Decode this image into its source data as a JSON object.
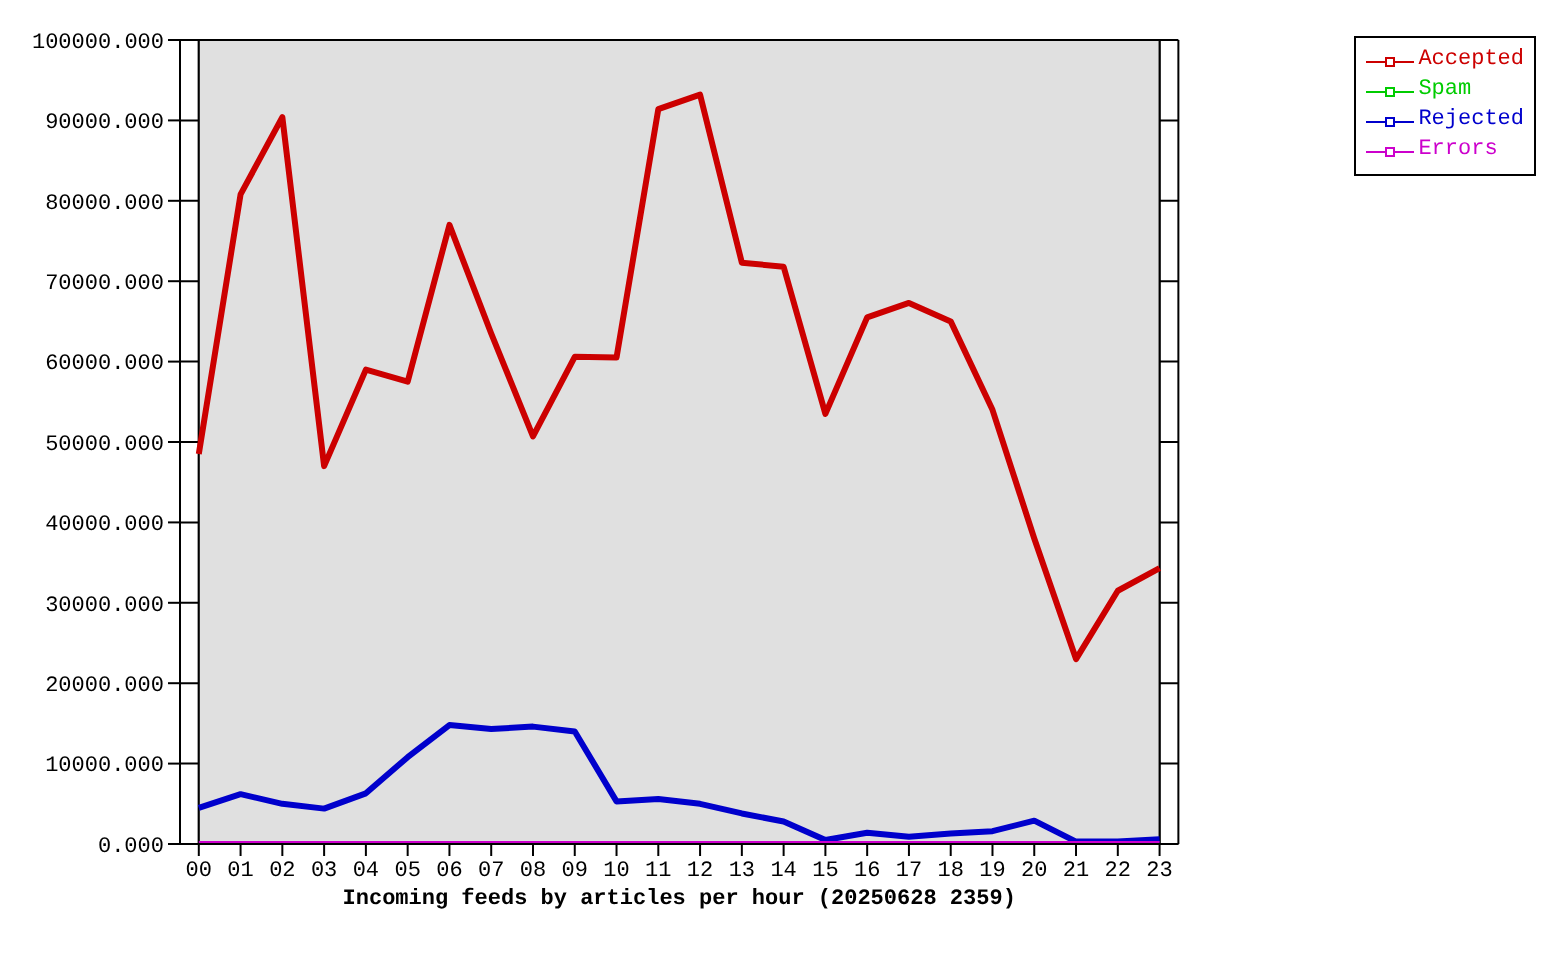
{
  "chart_data": {
    "type": "line",
    "xlabel": "Incoming feeds by articles per hour (20250628 2359)",
    "categories": [
      "00",
      "01",
      "02",
      "03",
      "04",
      "05",
      "06",
      "07",
      "08",
      "09",
      "10",
      "11",
      "12",
      "13",
      "14",
      "15",
      "16",
      "17",
      "18",
      "19",
      "20",
      "21",
      "22",
      "23"
    ],
    "series": [
      {
        "name": "Accepted",
        "color": "#cc0000",
        "values": [
          48500,
          80800,
          90400,
          47000,
          59000,
          57500,
          77000,
          63500,
          50700,
          60600,
          60500,
          91400,
          93200,
          72300,
          71800,
          53500,
          65500,
          67300,
          65000,
          54000,
          38000,
          23000,
          31500,
          34300
        ]
      },
      {
        "name": "Spam",
        "color": "#00cc00",
        "values": [
          null,
          null,
          null,
          null,
          null,
          null,
          null,
          null,
          null,
          null,
          null,
          null,
          null,
          null,
          null,
          null,
          null,
          null,
          null,
          null,
          null,
          null,
          null,
          null
        ]
      },
      {
        "name": "Rejected",
        "color": "#0000cc",
        "values": [
          4500,
          6200,
          5000,
          4400,
          6300,
          10800,
          14800,
          14300,
          14600,
          14000,
          5300,
          5600,
          5000,
          3800,
          2800,
          500,
          1400,
          900,
          1300,
          1600,
          2900,
          300,
          300,
          600
        ]
      },
      {
        "name": "Errors",
        "color": "#cc00cc",
        "values": [
          0,
          0,
          0,
          0,
          0,
          0,
          0,
          0,
          0,
          0,
          0,
          0,
          0,
          0,
          0,
          0,
          0,
          0,
          0,
          0,
          0,
          0,
          0,
          0
        ]
      }
    ],
    "ylim": [
      0,
      100000
    ],
    "yticks": [
      {
        "value": 0,
        "label": "0.000"
      },
      {
        "value": 10000,
        "label": "10000.000"
      },
      {
        "value": 20000,
        "label": "20000.000"
      },
      {
        "value": 30000,
        "label": "30000.000"
      },
      {
        "value": 40000,
        "label": "40000.000"
      },
      {
        "value": 50000,
        "label": "50000.000"
      },
      {
        "value": 60000,
        "label": "60000.000"
      },
      {
        "value": 70000,
        "label": "70000.000"
      },
      {
        "value": 80000,
        "label": "80000.000"
      },
      {
        "value": 90000,
        "label": "90000.000"
      },
      {
        "value": 100000,
        "label": "100000.000"
      }
    ],
    "grid": true,
    "legend": "top right",
    "marker": "none",
    "line_style": "solid"
  }
}
